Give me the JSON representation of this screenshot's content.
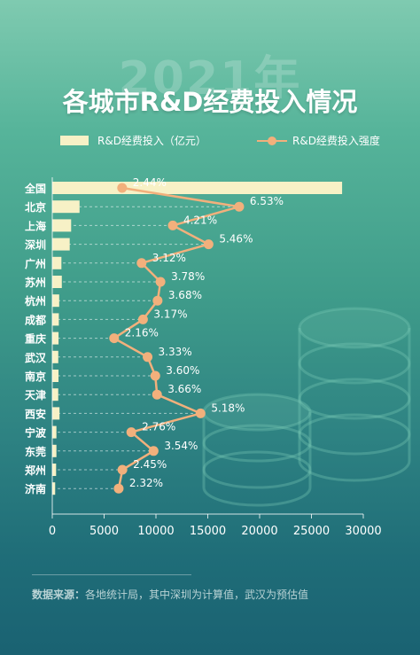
{
  "header": {
    "year": "2021年",
    "title": "各城市R&D经费投入情况"
  },
  "legend": {
    "bar_label": "R&D经费投入（亿元）",
    "line_label": "R&D经费投入强度"
  },
  "colors": {
    "bar": "#f7f1c6",
    "line": "#f2b07c",
    "text": "#ffffff"
  },
  "chart_data": {
    "type": "bar",
    "orientation": "horizontal",
    "categories": [
      "全国",
      "北京",
      "上海",
      "深圳",
      "广州",
      "苏州",
      "杭州",
      "成都",
      "重庆",
      "武汉",
      "南京",
      "天津",
      "西安",
      "宁波",
      "东莞",
      "郑州",
      "济南"
    ],
    "series": [
      {
        "name": "R&D经费投入（亿元）",
        "type": "bar",
        "values": [
          27956,
          2629,
          1820,
          1682,
          882,
          920,
          667,
          631,
          604,
          578,
          600,
          574,
          700,
          400,
          400,
          370,
          280
        ]
      },
      {
        "name": "R&D经费投入强度",
        "type": "line",
        "values": [
          2.44,
          6.53,
          4.21,
          5.46,
          3.12,
          3.78,
          3.68,
          3.17,
          2.16,
          3.33,
          3.6,
          3.66,
          5.18,
          2.76,
          3.54,
          2.45,
          2.32
        ],
        "labels": [
          "2.44%",
          "6.53%",
          "4.21%",
          "5.46%",
          "3.12%",
          "3.78%",
          "3.68%",
          "3.17%",
          "2.16%",
          "3.33%",
          "3.60%",
          "3.66%",
          "5.18%",
          "2.76%",
          "3.54%",
          "2.45%",
          "2.32%"
        ]
      }
    ],
    "xlim": [
      0,
      30000
    ],
    "xticks": [
      "0",
      "5000",
      "10000",
      "15000",
      "20000",
      "25000",
      "30000"
    ],
    "xtick_values": [
      0,
      5000,
      10000,
      15000,
      20000,
      25000,
      30000
    ],
    "legend_position": "top"
  },
  "footer": {
    "source_label": "数据来源：",
    "source_text": "各地统计局，其中深圳为计算值，武汉为预估值"
  }
}
